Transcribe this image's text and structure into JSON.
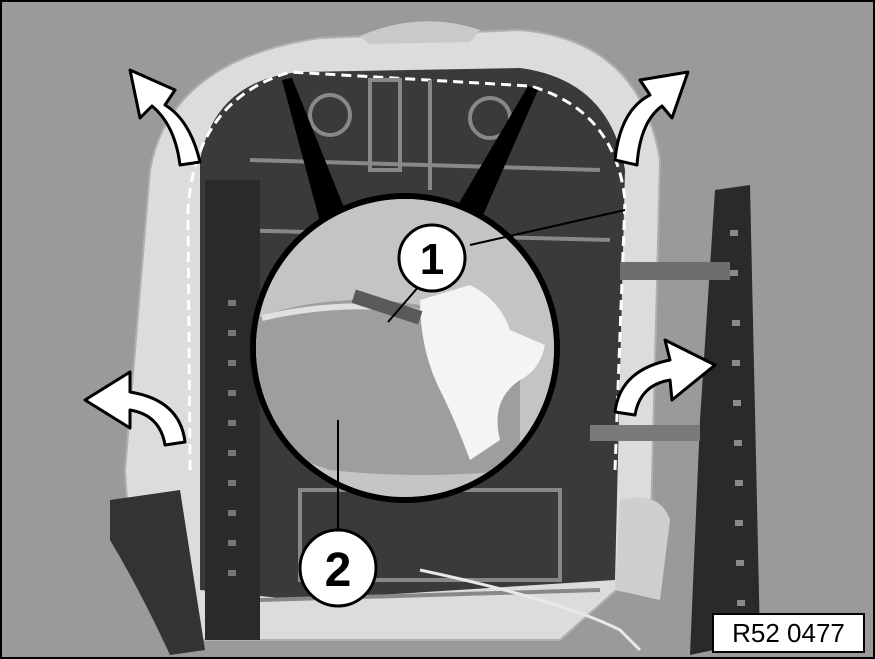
{
  "figure": {
    "callouts": [
      {
        "label": "1"
      },
      {
        "label": "2"
      }
    ],
    "reference_code": "R52 0477",
    "colors": {
      "background": "#9a9a9a",
      "frame": "#2a2a2a",
      "cover_shell": "#e4e4e4",
      "arrow_fill": "#ffffff",
      "outline": "#000000"
    },
    "arrows": [
      {
        "direction": "up-left"
      },
      {
        "direction": "up-right"
      },
      {
        "direction": "left"
      },
      {
        "direction": "right"
      }
    ]
  }
}
